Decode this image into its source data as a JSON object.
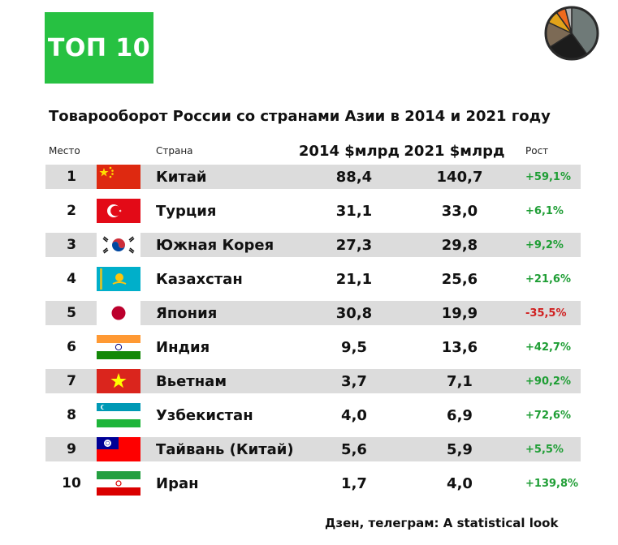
{
  "badge": "ТОП 10",
  "colors": {
    "badge": "#27c142",
    "row_shade": "#dcdcdc",
    "positive": "#1f9e35",
    "negative": "#d01f1f"
  },
  "chart_data": {
    "type": "table",
    "title": "Товарооборот России со странами Азии в 2014 и 2021 году",
    "columns": [
      "Место",
      "Страна",
      "2014 $млрд",
      "2021 $млрд",
      "Рост"
    ],
    "rows": [
      {
        "rank": "1",
        "flag": "china-flag-icon",
        "country": "Китай",
        "v2014": "88,4",
        "v2021": "140,7",
        "growth": "+59,1%"
      },
      {
        "rank": "2",
        "flag": "turkey-flag-icon",
        "country": "Турция",
        "v2014": "31,1",
        "v2021": "33,0",
        "growth": "+6,1%"
      },
      {
        "rank": "3",
        "flag": "south-korea-flag-icon",
        "country": "Южная Корея",
        "v2014": "27,3",
        "v2021": "29,8",
        "growth": "+9,2%"
      },
      {
        "rank": "4",
        "flag": "kazakhstan-flag-icon",
        "country": "Казахстан",
        "v2014": "21,1",
        "v2021": "25,6",
        "growth": "+21,6%"
      },
      {
        "rank": "5",
        "flag": "japan-flag-icon",
        "country": "Япония",
        "v2014": "30,8",
        "v2021": "19,9",
        "growth": "-35,5%"
      },
      {
        "rank": "6",
        "flag": "india-flag-icon",
        "country": "Индия",
        "v2014": "9,5",
        "v2021": "13,6",
        "growth": "+42,7%"
      },
      {
        "rank": "7",
        "flag": "vietnam-flag-icon",
        "country": "Вьетнам",
        "v2014": "3,7",
        "v2021": "7,1",
        "growth": "+90,2%"
      },
      {
        "rank": "8",
        "flag": "uzbekistan-flag-icon",
        "country": "Узбекистан",
        "v2014": "4,0",
        "v2021": "6,9",
        "growth": "+72,6%"
      },
      {
        "rank": "9",
        "flag": "taiwan-flag-icon",
        "country": "Тайвань (Китай)",
        "v2014": "5,6",
        "v2021": "5,9",
        "growth": "+5,5%"
      },
      {
        "rank": "10",
        "flag": "iran-flag-icon",
        "country": "Иран",
        "v2014": "1,7",
        "v2021": "4,0",
        "growth": "+139,8%"
      }
    ]
  },
  "footer": "Дзен, телеграм: A statistical look",
  "logo": {
    "icon": "pie-chart-icon",
    "slices": [
      {
        "value": 0.4,
        "color": "#6f7a78"
      },
      {
        "value": 0.26,
        "color": "#1c1c1c"
      },
      {
        "value": 0.16,
        "color": "#7c6a55"
      },
      {
        "value": 0.08,
        "color": "#e2a31a"
      },
      {
        "value": 0.06,
        "color": "#ef6a1c"
      },
      {
        "value": 0.04,
        "color": "#b5b5b5"
      }
    ]
  }
}
